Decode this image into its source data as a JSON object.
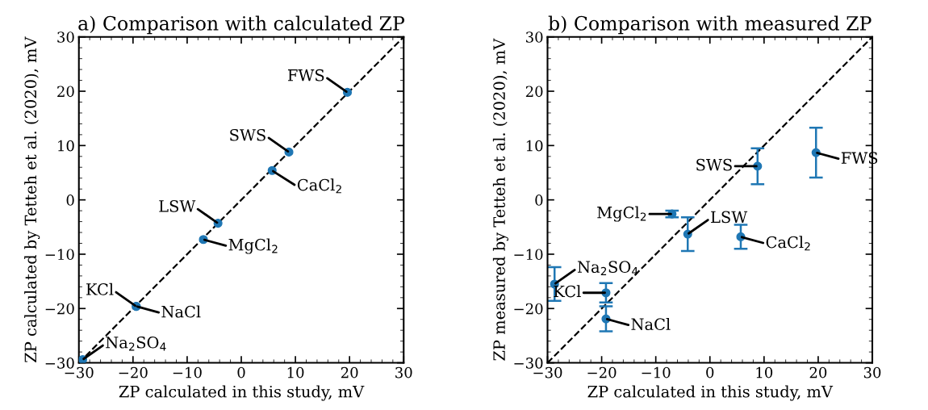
{
  "chart_data": [
    {
      "type": "scatter",
      "title": "a) Comparison with calculated ZP",
      "xlabel": "ZP calculated in this study, mV",
      "ylabel": "ZP calculated by Tetteh et al. (2020), mV",
      "xlim": [
        -30,
        30
      ],
      "ylim": [
        -30,
        30
      ],
      "xticks": [
        {
          "value": -30,
          "label": "−30"
        },
        {
          "value": -20,
          "label": "−20"
        },
        {
          "value": -10,
          "label": "−10"
        },
        0,
        10,
        20,
        30
      ],
      "yticks": [
        {
          "value": -30,
          "label": "−30"
        },
        {
          "value": -20,
          "label": "−20"
        },
        {
          "value": -10,
          "label": "−10"
        },
        0,
        10,
        20,
        30
      ],
      "grid": false,
      "legend": false,
      "marker": "circle",
      "series": [
        {
          "color": "#1f77b4",
          "x": [
            19.6,
            8.8,
            5.7,
            -4.3,
            -7.0,
            -19.4,
            -19.4,
            -29.3
          ],
          "values": [
            19.8,
            8.8,
            5.4,
            -4.3,
            -7.3,
            -19.6,
            -19.6,
            -29.4
          ]
        },
        {
          "type": "line",
          "color": "#000000",
          "line_style": "dashed",
          "marker": "none",
          "x": [
            -30,
            30
          ],
          "values": [
            -30,
            30
          ]
        }
      ],
      "annotations": [
        {
          "text": "FWS",
          "x": 19.6,
          "y": 19.8
        },
        {
          "text": "SWS",
          "x": 8.8,
          "y": 8.8
        },
        {
          "text": "CaCl$_{2}$",
          "x": 5.7,
          "y": 5.4
        },
        {
          "text": "LSW",
          "x": -4.3,
          "y": -4.3
        },
        {
          "text": "MgCl$_{2}$",
          "x": -7.0,
          "y": -7.3
        },
        {
          "text": "NaCl",
          "x": -19.4,
          "y": -19.6
        },
        {
          "text": "KCl",
          "x": -19.4,
          "y": -19.6
        },
        {
          "text": "Na$_{2}$SO$_{4}$",
          "x": -29.3,
          "y": -29.4
        }
      ]
    },
    {
      "type": "scatter",
      "title": "b) Comparison with measured ZP",
      "xlabel": "ZP calculated in this study, mV",
      "ylabel": "ZP measured by Tetteh et al. (2020), mV",
      "xlim": [
        -30,
        30
      ],
      "ylim": [
        -30,
        30
      ],
      "xticks": [
        {
          "value": -30,
          "label": "−30"
        },
        {
          "value": -20,
          "label": "−20"
        },
        {
          "value": -10,
          "label": "−10"
        },
        0,
        10,
        20,
        30
      ],
      "yticks": [
        {
          "value": -30,
          "label": "−30"
        },
        {
          "value": -20,
          "label": "−20"
        },
        {
          "value": -10,
          "label": "−10"
        },
        0,
        10,
        20,
        30
      ],
      "grid": false,
      "legend": false,
      "marker": "circle",
      "series": [
        {
          "color": "#1f77b4",
          "x": [
            19.6,
            8.8,
            5.7,
            -4.1,
            -7.0,
            -19.2,
            -19.2,
            -28.7
          ],
          "values": [
            8.7,
            6.2,
            -6.8,
            -6.3,
            -2.6,
            -21.9,
            -17.1,
            -15.5
          ],
          "errors": [
            4.6,
            3.3,
            2.2,
            3.1,
            0.6,
            2.3,
            1.8,
            3.1
          ]
        },
        {
          "type": "line",
          "color": "#000000",
          "line_style": "dashed",
          "marker": "none",
          "x": [
            -30,
            30
          ],
          "values": [
            -30,
            30
          ]
        }
      ],
      "annotations": [
        {
          "text": "FWS",
          "x": 19.6,
          "y": 8.7
        },
        {
          "text": "SWS",
          "x": 8.8,
          "y": 6.2
        },
        {
          "text": "CaCl$_{2}$",
          "x": 5.7,
          "y": -6.8
        },
        {
          "text": "LSW",
          "x": -4.1,
          "y": -6.3
        },
        {
          "text": "MgCl$_{2}$",
          "x": -7.0,
          "y": -2.6
        },
        {
          "text": "NaCl",
          "x": -19.2,
          "y": -21.9
        },
        {
          "text": "KCl",
          "x": -19.2,
          "y": -17.1
        },
        {
          "text": "Na$_{2}$SO$_{4}$",
          "x": -28.7,
          "y": -15.5
        }
      ]
    }
  ]
}
